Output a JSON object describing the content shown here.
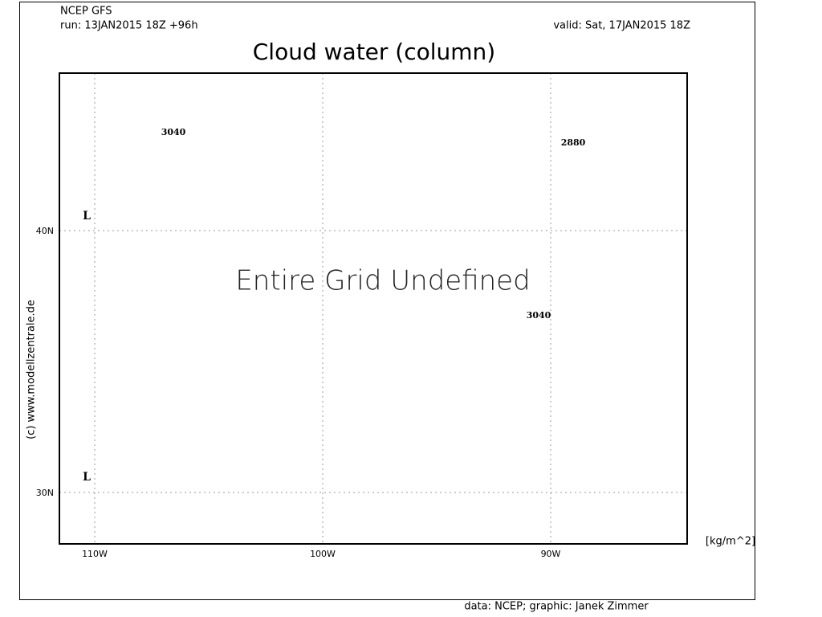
{
  "header": {
    "model": "NCEP GFS",
    "run": "run: 13JAN2015 18Z +96h",
    "valid": "valid: Sat, 17JAN2015 18Z"
  },
  "title": "Cloud water (column)",
  "message": "Entire Grid Undefined",
  "x_labels": [
    "110W",
    "100W",
    "90W"
  ],
  "y_labels": [
    "40N",
    "30N"
  ],
  "contour_labels": [
    "3040",
    "2880",
    "3040"
  ],
  "pressure_centers": [
    "L",
    "L"
  ],
  "units": "[kg/m^2]",
  "copyright": "(c) www.modellzentrale.de",
  "credit": "data: NCEP; graphic: Janek Zimmer"
}
